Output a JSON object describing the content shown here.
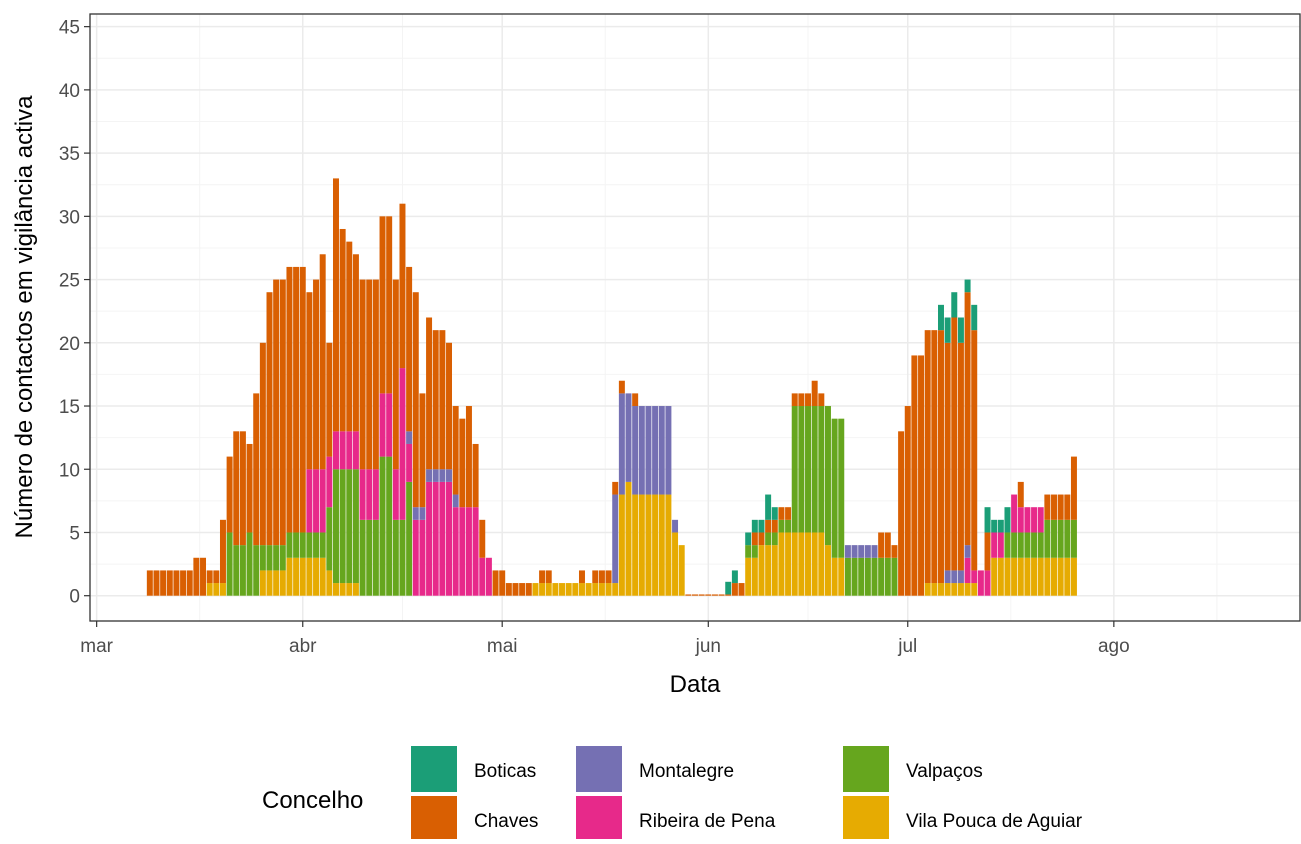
{
  "chart_data": {
    "type": "bar",
    "stacked": true,
    "title": "",
    "xlabel": "Data",
    "ylabel": "Número de contactos em vigilância activa",
    "ylim": [
      -2,
      46
    ],
    "yticks": [
      0,
      5,
      10,
      15,
      20,
      25,
      30,
      35,
      40,
      45
    ],
    "x_range": [
      "2020-02-29",
      "2020-08-29"
    ],
    "xticks": [
      {
        "date": "2020-03-01",
        "label": "mar"
      },
      {
        "date": "2020-04-01",
        "label": "abr"
      },
      {
        "date": "2020-05-01",
        "label": "mai"
      },
      {
        "date": "2020-06-01",
        "label": "jun"
      },
      {
        "date": "2020-07-01",
        "label": "jul"
      },
      {
        "date": "2020-08-01",
        "label": "ago"
      }
    ],
    "grid": true,
    "legend": {
      "title": "Concelho",
      "position": "bottom",
      "order": [
        "Boticas",
        "Chaves",
        "Montalegre",
        "Ribeira de Pena",
        "Valpaços",
        "Vila Pouca de Aguiar"
      ]
    },
    "series": [
      {
        "name": "Boticas",
        "color": "#1b9e77"
      },
      {
        "name": "Chaves",
        "color": "#d95f02"
      },
      {
        "name": "Montalegre",
        "color": "#7570b3"
      },
      {
        "name": "Ribeira de Pena",
        "color": "#e7298a"
      },
      {
        "name": "Valpaços",
        "color": "#66a61e"
      },
      {
        "name": "Vila Pouca de Aguiar",
        "color": "#e6ab02"
      }
    ],
    "stack_order": [
      "Vila Pouca de Aguiar",
      "Valpaços",
      "Ribeira de Pena",
      "Montalegre",
      "Chaves",
      "Boticas"
    ],
    "data": [
      {
        "date": "2020-03-09",
        "Chaves": 2
      },
      {
        "date": "2020-03-10",
        "Chaves": 2
      },
      {
        "date": "2020-03-11",
        "Chaves": 2
      },
      {
        "date": "2020-03-12",
        "Chaves": 2
      },
      {
        "date": "2020-03-13",
        "Chaves": 2
      },
      {
        "date": "2020-03-14",
        "Chaves": 2
      },
      {
        "date": "2020-03-15",
        "Chaves": 2
      },
      {
        "date": "2020-03-16",
        "Chaves": 3
      },
      {
        "date": "2020-03-17",
        "Chaves": 3
      },
      {
        "date": "2020-03-18",
        "Vila Pouca de Aguiar": 1,
        "Chaves": 1
      },
      {
        "date": "2020-03-19",
        "Vila Pouca de Aguiar": 1,
        "Chaves": 1
      },
      {
        "date": "2020-03-20",
        "Vila Pouca de Aguiar": 1,
        "Chaves": 5
      },
      {
        "date": "2020-03-21",
        "Valpaços": 5,
        "Chaves": 6
      },
      {
        "date": "2020-03-22",
        "Valpaços": 4,
        "Chaves": 9
      },
      {
        "date": "2020-03-23",
        "Valpaços": 4,
        "Chaves": 9
      },
      {
        "date": "2020-03-24",
        "Valpaços": 5,
        "Chaves": 7
      },
      {
        "date": "2020-03-25",
        "Valpaços": 4,
        "Chaves": 12
      },
      {
        "date": "2020-03-26",
        "Vila Pouca de Aguiar": 2,
        "Valpaços": 2,
        "Chaves": 16
      },
      {
        "date": "2020-03-27",
        "Vila Pouca de Aguiar": 2,
        "Valpaços": 2,
        "Chaves": 20
      },
      {
        "date": "2020-03-28",
        "Vila Pouca de Aguiar": 2,
        "Valpaços": 2,
        "Chaves": 21
      },
      {
        "date": "2020-03-29",
        "Vila Pouca de Aguiar": 2,
        "Valpaços": 2,
        "Chaves": 21
      },
      {
        "date": "2020-03-30",
        "Vila Pouca de Aguiar": 3,
        "Valpaços": 2,
        "Chaves": 21
      },
      {
        "date": "2020-03-31",
        "Vila Pouca de Aguiar": 3,
        "Valpaços": 2,
        "Chaves": 21
      },
      {
        "date": "2020-04-01",
        "Vila Pouca de Aguiar": 3,
        "Valpaços": 2,
        "Chaves": 21
      },
      {
        "date": "2020-04-02",
        "Vila Pouca de Aguiar": 3,
        "Valpaços": 2,
        "Ribeira de Pena": 5,
        "Chaves": 14
      },
      {
        "date": "2020-04-03",
        "Vila Pouca de Aguiar": 3,
        "Valpaços": 2,
        "Ribeira de Pena": 5,
        "Chaves": 15
      },
      {
        "date": "2020-04-04",
        "Vila Pouca de Aguiar": 3,
        "Valpaços": 2,
        "Ribeira de Pena": 5,
        "Chaves": 17
      },
      {
        "date": "2020-04-05",
        "Vila Pouca de Aguiar": 2,
        "Valpaços": 5,
        "Ribeira de Pena": 4,
        "Chaves": 9
      },
      {
        "date": "2020-04-06",
        "Vila Pouca de Aguiar": 1,
        "Valpaços": 9,
        "Ribeira de Pena": 3,
        "Chaves": 20
      },
      {
        "date": "2020-04-07",
        "Vila Pouca de Aguiar": 1,
        "Valpaços": 9,
        "Ribeira de Pena": 3,
        "Chaves": 16
      },
      {
        "date": "2020-04-08",
        "Vila Pouca de Aguiar": 1,
        "Valpaços": 9,
        "Ribeira de Pena": 3,
        "Chaves": 15
      },
      {
        "date": "2020-04-09",
        "Vila Pouca de Aguiar": 1,
        "Valpaços": 9,
        "Ribeira de Pena": 3,
        "Chaves": 14
      },
      {
        "date": "2020-04-10",
        "Valpaços": 6,
        "Ribeira de Pena": 4,
        "Chaves": 15
      },
      {
        "date": "2020-04-11",
        "Valpaços": 6,
        "Ribeira de Pena": 4,
        "Chaves": 15
      },
      {
        "date": "2020-04-12",
        "Valpaços": 6,
        "Ribeira de Pena": 4,
        "Chaves": 15
      },
      {
        "date": "2020-04-13",
        "Valpaços": 11,
        "Ribeira de Pena": 5,
        "Chaves": 14
      },
      {
        "date": "2020-04-14",
        "Valpaços": 11,
        "Ribeira de Pena": 5,
        "Chaves": 14
      },
      {
        "date": "2020-04-15",
        "Valpaços": 6,
        "Ribeira de Pena": 4,
        "Chaves": 15
      },
      {
        "date": "2020-04-16",
        "Valpaços": 6,
        "Ribeira de Pena": 12,
        "Chaves": 13
      },
      {
        "date": "2020-04-17",
        "Valpaços": 9,
        "Ribeira de Pena": 3,
        "Montalegre": 1,
        "Chaves": 13
      },
      {
        "date": "2020-04-18",
        "Ribeira de Pena": 6,
        "Montalegre": 1,
        "Chaves": 17
      },
      {
        "date": "2020-04-19",
        "Ribeira de Pena": 6,
        "Montalegre": 1,
        "Chaves": 9
      },
      {
        "date": "2020-04-20",
        "Ribeira de Pena": 9,
        "Montalegre": 1,
        "Chaves": 12
      },
      {
        "date": "2020-04-21",
        "Ribeira de Pena": 9,
        "Montalegre": 1,
        "Chaves": 11
      },
      {
        "date": "2020-04-22",
        "Ribeira de Pena": 9,
        "Montalegre": 1,
        "Chaves": 11
      },
      {
        "date": "2020-04-23",
        "Ribeira de Pena": 9,
        "Montalegre": 1,
        "Chaves": 10
      },
      {
        "date": "2020-04-24",
        "Ribeira de Pena": 7,
        "Montalegre": 1,
        "Chaves": 7
      },
      {
        "date": "2020-04-25",
        "Ribeira de Pena": 7,
        "Chaves": 7
      },
      {
        "date": "2020-04-26",
        "Ribeira de Pena": 7,
        "Chaves": 8
      },
      {
        "date": "2020-04-27",
        "Ribeira de Pena": 7,
        "Chaves": 5
      },
      {
        "date": "2020-04-28",
        "Ribeira de Pena": 3,
        "Chaves": 3
      },
      {
        "date": "2020-04-29",
        "Ribeira de Pena": 3,
        "Chaves": 0
      },
      {
        "date": "2020-04-30",
        "Chaves": 2
      },
      {
        "date": "2020-05-01",
        "Chaves": 2
      },
      {
        "date": "2020-05-02",
        "Chaves": 1
      },
      {
        "date": "2020-05-03",
        "Chaves": 1
      },
      {
        "date": "2020-05-04",
        "Chaves": 1
      },
      {
        "date": "2020-05-05",
        "Chaves": 1
      },
      {
        "date": "2020-05-06",
        "Vila Pouca de Aguiar": 1,
        "Chaves": 0
      },
      {
        "date": "2020-05-07",
        "Vila Pouca de Aguiar": 1,
        "Chaves": 1
      },
      {
        "date": "2020-05-08",
        "Vila Pouca de Aguiar": 1,
        "Chaves": 1
      },
      {
        "date": "2020-05-09",
        "Vila Pouca de Aguiar": 1
      },
      {
        "date": "2020-05-10",
        "Vila Pouca de Aguiar": 1
      },
      {
        "date": "2020-05-11",
        "Vila Pouca de Aguiar": 1
      },
      {
        "date": "2020-05-12",
        "Vila Pouca de Aguiar": 1
      },
      {
        "date": "2020-05-13",
        "Vila Pouca de Aguiar": 1,
        "Chaves": 1
      },
      {
        "date": "2020-05-14",
        "Vila Pouca de Aguiar": 1
      },
      {
        "date": "2020-05-15",
        "Vila Pouca de Aguiar": 1,
        "Chaves": 1
      },
      {
        "date": "2020-05-16",
        "Vila Pouca de Aguiar": 1,
        "Chaves": 1
      },
      {
        "date": "2020-05-17",
        "Vila Pouca de Aguiar": 1,
        "Chaves": 1
      },
      {
        "date": "2020-05-18",
        "Vila Pouca de Aguiar": 1,
        "Montalegre": 7,
        "Chaves": 1
      },
      {
        "date": "2020-05-19",
        "Vila Pouca de Aguiar": 8,
        "Montalegre": 8,
        "Chaves": 1
      },
      {
        "date": "2020-05-20",
        "Vila Pouca de Aguiar": 9,
        "Montalegre": 7,
        "Chaves": 0
      },
      {
        "date": "2020-05-21",
        "Vila Pouca de Aguiar": 8,
        "Montalegre": 7,
        "Chaves": 1
      },
      {
        "date": "2020-05-22",
        "Vila Pouca de Aguiar": 8,
        "Montalegre": 7
      },
      {
        "date": "2020-05-23",
        "Vila Pouca de Aguiar": 8,
        "Montalegre": 7
      },
      {
        "date": "2020-05-24",
        "Vila Pouca de Aguiar": 8,
        "Montalegre": 7
      },
      {
        "date": "2020-05-25",
        "Vila Pouca de Aguiar": 8,
        "Montalegre": 7
      },
      {
        "date": "2020-05-26",
        "Vila Pouca de Aguiar": 8,
        "Montalegre": 7
      },
      {
        "date": "2020-05-27",
        "Vila Pouca de Aguiar": 5,
        "Montalegre": 1
      },
      {
        "date": "2020-05-28",
        "Vila Pouca de Aguiar": 4
      },
      {
        "date": "2020-05-29",
        "Chaves": 0.1
      },
      {
        "date": "2020-05-30",
        "Chaves": 0.1
      },
      {
        "date": "2020-05-31",
        "Chaves": 0.1
      },
      {
        "date": "2020-06-01",
        "Chaves": 0.1
      },
      {
        "date": "2020-06-02",
        "Chaves": 0.1
      },
      {
        "date": "2020-06-03",
        "Chaves": 0.1
      },
      {
        "date": "2020-06-04",
        "Chaves": 0.1,
        "Boticas": 1
      },
      {
        "date": "2020-06-05",
        "Chaves": 1,
        "Boticas": 1
      },
      {
        "date": "2020-06-06",
        "Chaves": 1
      },
      {
        "date": "2020-06-07",
        "Vila Pouca de Aguiar": 3,
        "Valpaços": 1,
        "Boticas": 1
      },
      {
        "date": "2020-06-08",
        "Vila Pouca de Aguiar": 3,
        "Valpaços": 1,
        "Chaves": 1,
        "Boticas": 1
      },
      {
        "date": "2020-06-09",
        "Vila Pouca de Aguiar": 4,
        "Chaves": 1,
        "Boticas": 1
      },
      {
        "date": "2020-06-10",
        "Vila Pouca de Aguiar": 4,
        "Valpaços": 1,
        "Chaves": 1,
        "Boticas": 2
      },
      {
        "date": "2020-06-11",
        "Vila Pouca de Aguiar": 4,
        "Valpaços": 1,
        "Chaves": 1,
        "Boticas": 1
      },
      {
        "date": "2020-06-12",
        "Vila Pouca de Aguiar": 5,
        "Valpaços": 1,
        "Chaves": 1
      },
      {
        "date": "2020-06-13",
        "Vila Pouca de Aguiar": 5,
        "Valpaços": 1,
        "Chaves": 1
      },
      {
        "date": "2020-06-14",
        "Vila Pouca de Aguiar": 5,
        "Valpaços": 10,
        "Chaves": 1
      },
      {
        "date": "2020-06-15",
        "Vila Pouca de Aguiar": 5,
        "Valpaços": 10,
        "Chaves": 1
      },
      {
        "date": "2020-06-16",
        "Vila Pouca de Aguiar": 5,
        "Valpaços": 10,
        "Chaves": 1
      },
      {
        "date": "2020-06-17",
        "Vila Pouca de Aguiar": 5,
        "Valpaços": 10,
        "Chaves": 2
      },
      {
        "date": "2020-06-18",
        "Vila Pouca de Aguiar": 5,
        "Valpaços": 10,
        "Chaves": 1
      },
      {
        "date": "2020-06-19",
        "Vila Pouca de Aguiar": 4,
        "Valpaços": 11
      },
      {
        "date": "2020-06-20",
        "Vila Pouca de Aguiar": 3,
        "Valpaços": 11
      },
      {
        "date": "2020-06-21",
        "Vila Pouca de Aguiar": 3,
        "Valpaços": 11
      },
      {
        "date": "2020-06-22",
        "Valpaços": 3,
        "Montalegre": 1
      },
      {
        "date": "2020-06-23",
        "Valpaços": 3,
        "Montalegre": 1
      },
      {
        "date": "2020-06-24",
        "Valpaços": 3,
        "Montalegre": 1
      },
      {
        "date": "2020-06-25",
        "Valpaços": 3,
        "Montalegre": 1
      },
      {
        "date": "2020-06-26",
        "Valpaços": 3,
        "Montalegre": 1
      },
      {
        "date": "2020-06-27",
        "Valpaços": 3,
        "Chaves": 2
      },
      {
        "date": "2020-06-28",
        "Valpaços": 3,
        "Chaves": 2
      },
      {
        "date": "2020-06-29",
        "Valpaços": 3,
        "Chaves": 1
      },
      {
        "date": "2020-06-30",
        "Chaves": 13
      },
      {
        "date": "2020-07-01",
        "Chaves": 15
      },
      {
        "date": "2020-07-02",
        "Chaves": 19
      },
      {
        "date": "2020-07-03",
        "Chaves": 19
      },
      {
        "date": "2020-07-04",
        "Vila Pouca de Aguiar": 1,
        "Chaves": 20
      },
      {
        "date": "2020-07-05",
        "Vila Pouca de Aguiar": 1,
        "Chaves": 20
      },
      {
        "date": "2020-07-06",
        "Vila Pouca de Aguiar": 1,
        "Chaves": 20,
        "Boticas": 2
      },
      {
        "date": "2020-07-07",
        "Vila Pouca de Aguiar": 1,
        "Montalegre": 1,
        "Chaves": 18,
        "Boticas": 2
      },
      {
        "date": "2020-07-08",
        "Vila Pouca de Aguiar": 1,
        "Montalegre": 1,
        "Chaves": 20,
        "Boticas": 2
      },
      {
        "date": "2020-07-09",
        "Vila Pouca de Aguiar": 1,
        "Montalegre": 1,
        "Chaves": 18,
        "Boticas": 2
      },
      {
        "date": "2020-07-10",
        "Vila Pouca de Aguiar": 1,
        "Ribeira de Pena": 2,
        "Montalegre": 1,
        "Chaves": 20,
        "Boticas": 1
      },
      {
        "date": "2020-07-11",
        "Vila Pouca de Aguiar": 1,
        "Ribeira de Pena": 1,
        "Chaves": 19,
        "Boticas": 2
      },
      {
        "date": "2020-07-12",
        "Ribeira de Pena": 2,
        "Chaves": 0
      },
      {
        "date": "2020-07-13",
        "Ribeira de Pena": 2,
        "Chaves": 3,
        "Boticas": 2
      },
      {
        "date": "2020-07-14",
        "Vila Pouca de Aguiar": 3,
        "Ribeira de Pena": 2,
        "Boticas": 1
      },
      {
        "date": "2020-07-15",
        "Vila Pouca de Aguiar": 3,
        "Ribeira de Pena": 2,
        "Boticas": 1
      },
      {
        "date": "2020-07-16",
        "Vila Pouca de Aguiar": 3,
        "Valpaços": 2,
        "Boticas": 2
      },
      {
        "date": "2020-07-17",
        "Vila Pouca de Aguiar": 3,
        "Valpaços": 2,
        "Ribeira de Pena": 3
      },
      {
        "date": "2020-07-18",
        "Vila Pouca de Aguiar": 3,
        "Valpaços": 2,
        "Ribeira de Pena": 2,
        "Chaves": 2
      },
      {
        "date": "2020-07-19",
        "Vila Pouca de Aguiar": 3,
        "Valpaços": 2,
        "Ribeira de Pena": 2
      },
      {
        "date": "2020-07-20",
        "Vila Pouca de Aguiar": 3,
        "Valpaços": 2,
        "Ribeira de Pena": 2
      },
      {
        "date": "2020-07-21",
        "Vila Pouca de Aguiar": 3,
        "Valpaços": 2,
        "Ribeira de Pena": 2
      },
      {
        "date": "2020-07-22",
        "Vila Pouca de Aguiar": 3,
        "Valpaços": 3,
        "Chaves": 2
      },
      {
        "date": "2020-07-23",
        "Vila Pouca de Aguiar": 3,
        "Valpaços": 3,
        "Chaves": 2
      },
      {
        "date": "2020-07-24",
        "Vila Pouca de Aguiar": 3,
        "Valpaços": 3,
        "Chaves": 2
      },
      {
        "date": "2020-07-25",
        "Vila Pouca de Aguiar": 3,
        "Valpaços": 3,
        "Chaves": 2
      },
      {
        "date": "2020-07-26",
        "Vila Pouca de Aguiar": 3,
        "Valpaços": 3,
        "Chaves": 5
      }
    ]
  }
}
